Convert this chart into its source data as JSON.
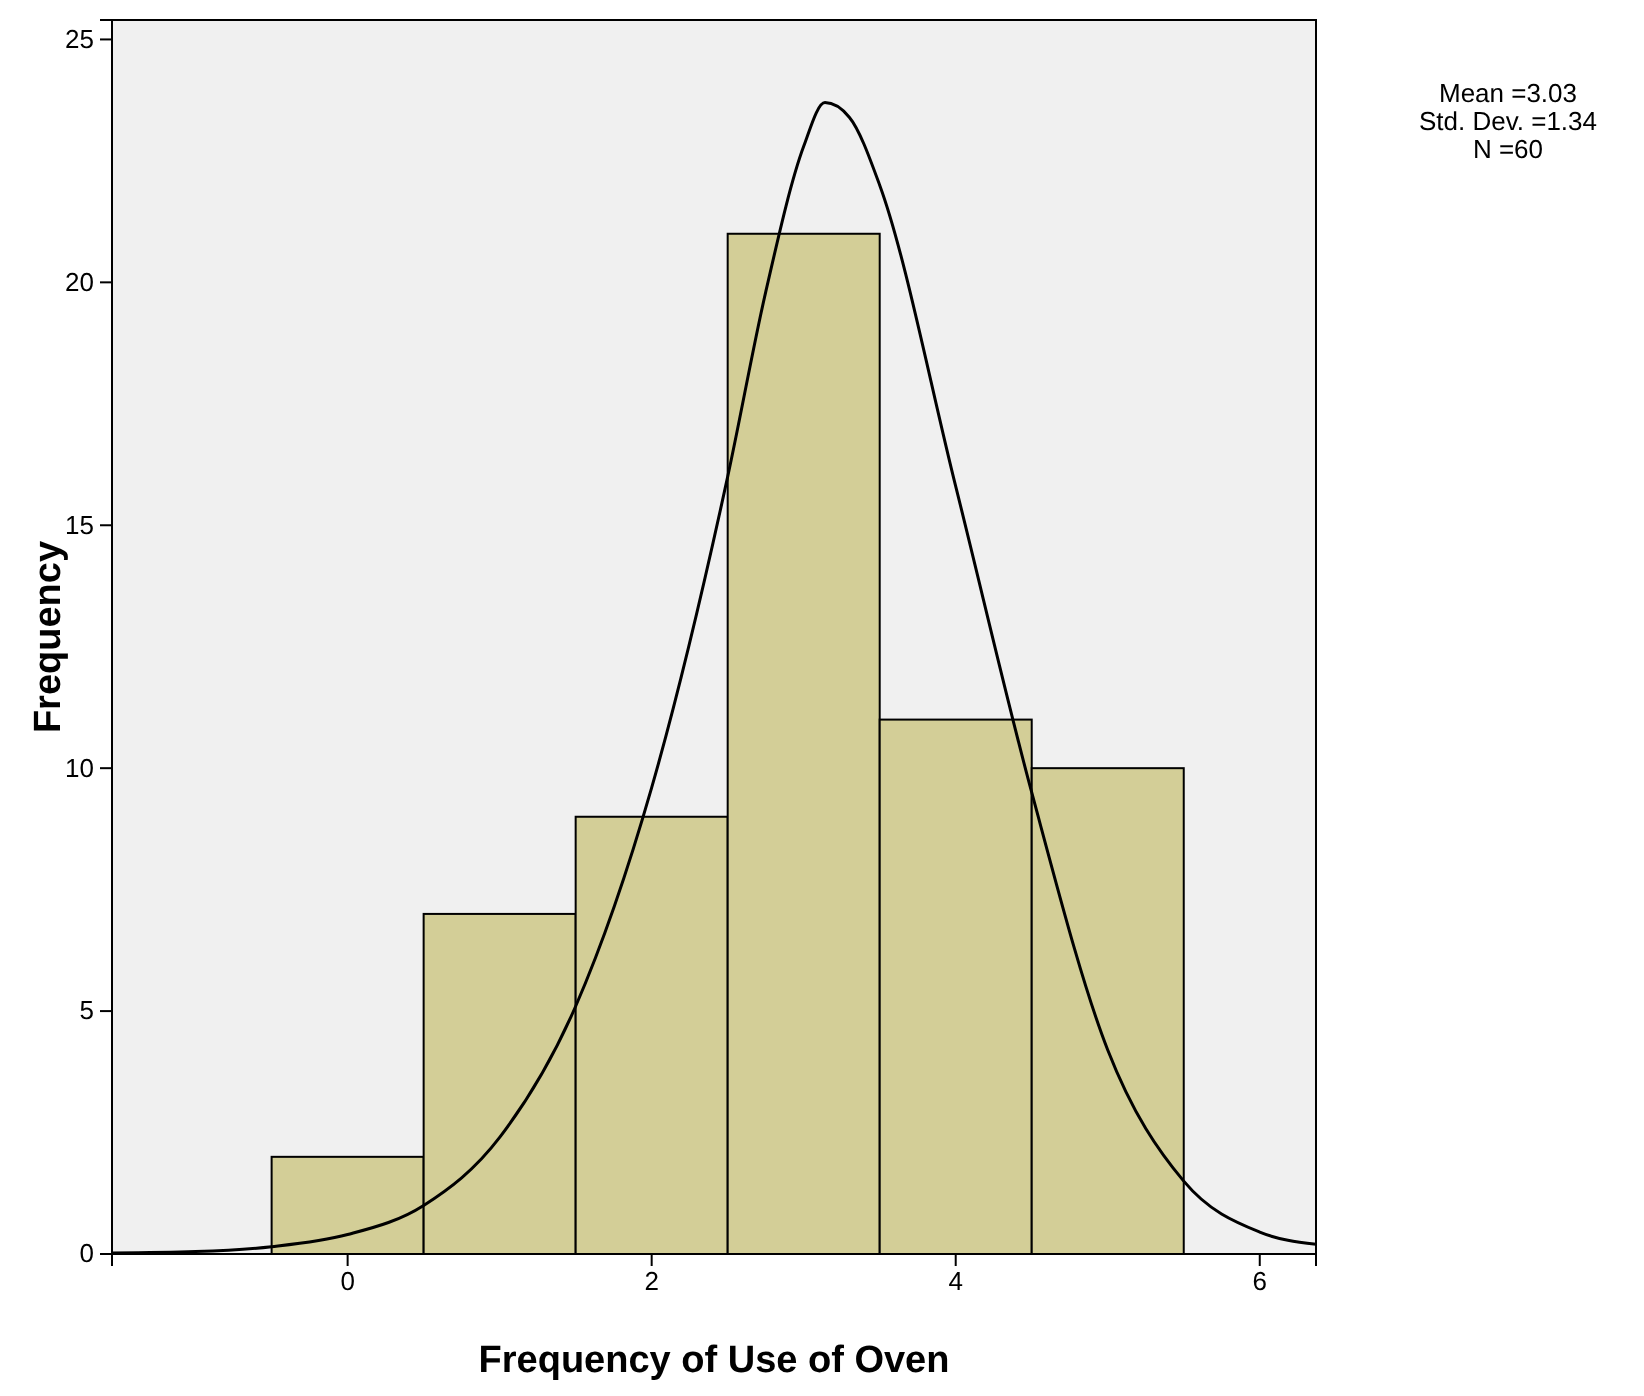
{
  "chart_data": {
    "type": "histogram",
    "xlabel": "Frequency of Use of  Oven",
    "ylabel": "Frequency",
    "bins": [
      -0.5,
      0.5,
      1.5,
      2.5,
      3.5,
      4.5,
      5.5
    ],
    "values": [
      2,
      7,
      9,
      21,
      11,
      10
    ],
    "color": "#d3ce97",
    "series": [
      {
        "type": "line",
        "color": "#000000",
        "x": [
          -1.55,
          -1,
          -0.5,
          0,
          0.5,
          1,
          1.5,
          2,
          2.5,
          2.75,
          3,
          3.14,
          3.3,
          3.5,
          4,
          4.5,
          5,
          5.5,
          6,
          6.37
        ],
        "values": [
          0.02,
          0.05,
          0.15,
          0.4,
          1.0,
          2.4,
          5.1,
          9.6,
          16.0,
          19.8,
          22.8,
          23.7,
          23.4,
          22.0,
          15.8,
          9.5,
          4.2,
          1.5,
          0.45,
          0.2
        ]
      }
    ],
    "xlim": [
      -1.55,
      6.37
    ],
    "ylim": [
      0,
      25.4
    ],
    "xticks": [
      0,
      2,
      4,
      6
    ],
    "yticks": [
      0,
      5,
      10,
      15,
      20,
      25
    ],
    "grid": false,
    "marker": "none",
    "line_style": "solid",
    "annotations": [
      "Mean =3.03",
      "Std. Dev. =1.34",
      "N =60"
    ]
  }
}
